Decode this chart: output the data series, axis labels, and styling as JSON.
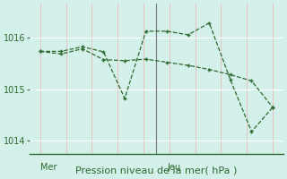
{
  "line1_y": [
    1015.73,
    1015.73,
    1015.82,
    1015.72,
    1014.82,
    1016.12,
    1016.12,
    1016.05,
    1016.28,
    1015.18,
    1014.18,
    1014.65
  ],
  "line2_y": [
    1015.73,
    1015.68,
    1015.78,
    1015.57,
    1015.55,
    1015.58,
    1015.52,
    1015.46,
    1015.38,
    1015.28,
    1015.16,
    1014.65
  ],
  "line_color": "#2d6a2d",
  "bg_color": "#d4f0eb",
  "grid_color_v": "#e8c0c0",
  "grid_color_h": "#ffffff",
  "ylim": [
    1013.75,
    1016.65
  ],
  "yticks": [
    1014,
    1015,
    1016
  ],
  "xlabel": "Pression niveau de la mer( hPa )",
  "day_labels": [
    "Mer",
    "Jeu"
  ],
  "day_positions": [
    0,
    6
  ],
  "sep_positions": [
    5.5
  ],
  "n_points": 12,
  "label_fontsize": 8,
  "tick_fontsize": 7
}
